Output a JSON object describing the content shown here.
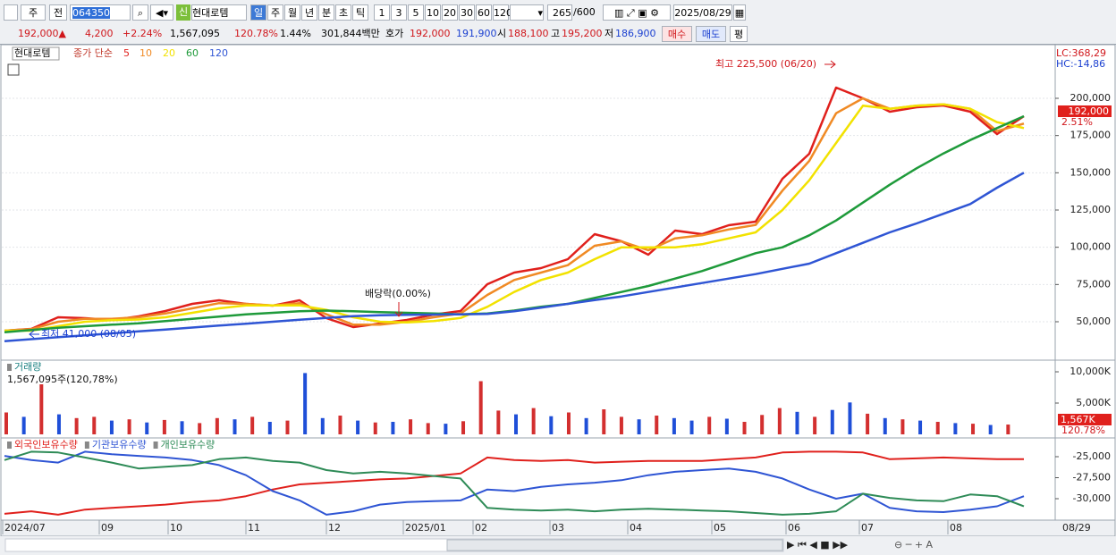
{
  "toolbar": {
    "type_select": "주",
    "prev": "전",
    "code": "064350",
    "badge": "신",
    "name": "현대로템",
    "periods": [
      "일",
      "주",
      "월",
      "년",
      "분",
      "초",
      "틱"
    ],
    "intervals": [
      "1",
      "3",
      "5",
      "10",
      "20",
      "30",
      "60",
      "120"
    ],
    "count": "265",
    "max_count": "/600",
    "date": "2025/08/29"
  },
  "quote": {
    "price": "192,000▲",
    "change": "4,200",
    "change_pct": "+2.24%",
    "volume": "1,567,095",
    "volume_ratio": "120.78%",
    "turnover": "1.44%",
    "amount": "301,844백만",
    "bid_label": "호가",
    "ask": "192,000",
    "bid": "191,900",
    "open_label": "시",
    "open": "188,100",
    "high_label": "고",
    "high": "195,200",
    "low_label": "저",
    "low": "186,900",
    "buy": "매수",
    "sell": "매도",
    "avg": "평"
  },
  "date_labels": [
    "2024/07",
    "09",
    "10",
    "11",
    "12",
    "2025/01",
    "02",
    "03",
    "04",
    "05",
    "06",
    "07",
    "08",
    "08/29"
  ],
  "chart_data": [
    {
      "type": "line",
      "title": "현대로템",
      "legend_title": "종가 단순",
      "right_labels": [
        "LC:368,29",
        "HC:-14,86"
      ],
      "current_label": "192,000",
      "current_pct": "2.51%",
      "annotations": [
        "최고 225,500 (06/20)",
        "최저 41,000 (08/05)",
        "배당락(0.00%)"
      ],
      "ylim": [
        24200,
        234800
      ],
      "yticks": [
        {
          "value": 50000,
          "label": "50,000"
        },
        {
          "value": 75000,
          "label": "75,000"
        },
        {
          "value": 100000,
          "label": "100,000"
        },
        {
          "value": 125000,
          "label": "125,000"
        },
        {
          "value": 150000,
          "label": "150,000"
        },
        {
          "value": 175000,
          "label": "175,000"
        },
        {
          "value": 200000,
          "label": "200,000"
        }
      ],
      "grid": true,
      "series": [
        {
          "name": "5",
          "color": "#e0201c",
          "values": [
            44000,
            45200,
            53000,
            52400,
            51200,
            53600,
            57200,
            62000,
            64400,
            62000,
            60800,
            64400,
            52400,
            46400,
            48800,
            51200,
            54800,
            57200,
            75200,
            83000,
            86000,
            92000,
            108800,
            104000,
            95000,
            111200,
            108800,
            114800,
            117200,
            146000,
            162800,
            207200,
            200000,
            191000,
            194000,
            195200,
            191000,
            176000,
            188000
          ]
        },
        {
          "name": "10",
          "color": "#f08a24",
          "values": [
            44000,
            45000,
            50000,
            52000,
            52000,
            53000,
            55500,
            59000,
            62500,
            62000,
            61000,
            62500,
            55000,
            48000,
            48000,
            50000,
            53000,
            55500,
            68000,
            78000,
            83000,
            88000,
            101000,
            104000,
            98000,
            106000,
            108000,
            112000,
            115000,
            138000,
            158000,
            190000,
            200000,
            193000,
            195000,
            196000,
            193000,
            178000,
            183000
          ]
        },
        {
          "name": "20",
          "color": "#f2e200",
          "values": [
            44000,
            44000,
            47000,
            50000,
            51000,
            51500,
            53000,
            56000,
            59000,
            61000,
            61000,
            61000,
            58000,
            53000,
            50000,
            49500,
            50500,
            52500,
            60000,
            70000,
            78000,
            83000,
            92000,
            100000,
            100000,
            100000,
            102000,
            106000,
            110000,
            125000,
            145000,
            170000,
            195000,
            193000,
            195000,
            196000,
            193000,
            184000,
            180000
          ]
        },
        {
          "name": "60",
          "color": "#1e9a3a",
          "values": [
            43000,
            44500,
            46000,
            47000,
            48000,
            49000,
            50500,
            52000,
            53500,
            55000,
            56000,
            57000,
            57500,
            57000,
            56500,
            56000,
            55500,
            55000,
            55500,
            57500,
            60000,
            62000,
            66000,
            70000,
            74000,
            79000,
            84000,
            90000,
            96000,
            100000,
            108000,
            118000,
            130000,
            142000,
            153000,
            163000,
            172000,
            180000,
            188000
          ]
        },
        {
          "name": "120",
          "color": "#2f55d4",
          "values": [
            37000,
            38300,
            39600,
            40900,
            42200,
            43500,
            44800,
            46100,
            47400,
            48700,
            50000,
            51300,
            52600,
            53800,
            54300,
            54600,
            54800,
            55000,
            55200,
            57000,
            59500,
            62000,
            64500,
            67000,
            70000,
            73000,
            76000,
            79000,
            82000,
            85500,
            89000,
            96000,
            103000,
            110000,
            116000,
            122500,
            129000,
            140000,
            150000
          ]
        }
      ]
    },
    {
      "type": "bar",
      "title": "거래량",
      "subtitle": "1,567,095주(120,78%)",
      "current_label": "1,567K",
      "current_pct": "120.78%",
      "ylim": [
        0,
        11860
      ],
      "yticks": [
        {
          "value": 5000,
          "label": "5,000K"
        },
        {
          "value": 10000,
          "label": "10,000K"
        }
      ],
      "values": [
        3500,
        2800,
        8000,
        3200,
        2600,
        2800,
        2200,
        2400,
        1900,
        2300,
        2100,
        1800,
        2600,
        2400,
        2800,
        2000,
        2200,
        9800,
        2600,
        3000,
        2200,
        1900,
        2000,
        2400,
        1800,
        1700,
        2100,
        8500,
        3800,
        3200,
        4200,
        2900,
        3500,
        2600,
        4000,
        2800,
        2400,
        3000,
        2600,
        2200,
        2800,
        2500,
        2000,
        3100,
        4200,
        3600,
        2800,
        3900,
        5100,
        3300,
        2600,
        2400,
        2200,
        2000,
        1800,
        1700,
        1500,
        1567
      ],
      "colors": [
        "#d32f2f",
        "#1f4fd8",
        "#d32f2f",
        "#1f4fd8",
        "#d32f2f",
        "#d32f2f",
        "#1f4fd8",
        "#d32f2f",
        "#1f4fd8",
        "#d32f2f",
        "#1f4fd8",
        "#d32f2f",
        "#d32f2f",
        "#1f4fd8",
        "#d32f2f",
        "#1f4fd8",
        "#d32f2f",
        "#1f4fd8",
        "#1f4fd8",
        "#d32f2f",
        "#1f4fd8",
        "#d32f2f",
        "#1f4fd8",
        "#d32f2f",
        "#d32f2f",
        "#1f4fd8",
        "#d32f2f",
        "#d32f2f",
        "#d32f2f",
        "#1f4fd8",
        "#d32f2f",
        "#1f4fd8",
        "#d32f2f",
        "#1f4fd8",
        "#d32f2f",
        "#d32f2f",
        "#1f4fd8",
        "#d32f2f",
        "#1f4fd8",
        "#1f4fd8",
        "#d32f2f",
        "#1f4fd8",
        "#d32f2f",
        "#d32f2f",
        "#d32f2f",
        "#1f4fd8",
        "#d32f2f",
        "#1f4fd8",
        "#1f4fd8",
        "#d32f2f",
        "#1f4fd8",
        "#d32f2f",
        "#1f4fd8",
        "#d32f2f",
        "#1f4fd8",
        "#d32f2f",
        "#1f4fd8",
        "#d32f2f"
      ]
    },
    {
      "type": "line",
      "ylim": [
        -32340,
        -22980
      ],
      "yticks": [
        {
          "value": -25000,
          "label": "-25,000"
        },
        {
          "value": -27500,
          "label": "-27,500"
        },
        {
          "value": -30000,
          "label": "-30,000"
        }
      ],
      "series": [
        {
          "name": "외국인보유수량",
          "color": "#e0201c",
          "values": [
            -31800,
            -31500,
            -31900,
            -31300,
            -31100,
            -30900,
            -30700,
            -30400,
            -30200,
            -29700,
            -28900,
            -28300,
            -28100,
            -27900,
            -27700,
            -27600,
            -27300,
            -27000,
            -25100,
            -25400,
            -25500,
            -25400,
            -25700,
            -25600,
            -25500,
            -25500,
            -25500,
            -25300,
            -25100,
            -24500,
            -24400,
            -24400,
            -24500,
            -25300,
            -25200,
            -25100,
            -25200,
            -25300,
            -25300
          ]
        },
        {
          "name": "기관보유수량",
          "color": "#2f55d4",
          "values": [
            -24900,
            -25400,
            -25700,
            -24400,
            -24700,
            -24900,
            -25100,
            -25400,
            -26000,
            -27200,
            -29100,
            -30200,
            -31900,
            -31500,
            -30700,
            -30400,
            -30300,
            -30200,
            -28900,
            -29100,
            -28600,
            -28300,
            -28100,
            -27800,
            -27200,
            -26800,
            -26600,
            -26400,
            -26800,
            -27600,
            -28900,
            -30000,
            -29400,
            -31100,
            -31500,
            -31600,
            -31300,
            -30900,
            -29700
          ]
        },
        {
          "name": "개인보유수량",
          "color": "#2e8b57",
          "values": [
            -25400,
            -24400,
            -24500,
            -25100,
            -25700,
            -26400,
            -26200,
            -26000,
            -25300,
            -25100,
            -25500,
            -25700,
            -26600,
            -27000,
            -26800,
            -27000,
            -27300,
            -27600,
            -31100,
            -31300,
            -31400,
            -31300,
            -31500,
            -31300,
            -31200,
            -31300,
            -31400,
            -31500,
            -31700,
            -31900,
            -31800,
            -31500,
            -29400,
            -29900,
            -30200,
            -30300,
            -29500,
            -29700,
            -30900
          ]
        }
      ]
    }
  ]
}
